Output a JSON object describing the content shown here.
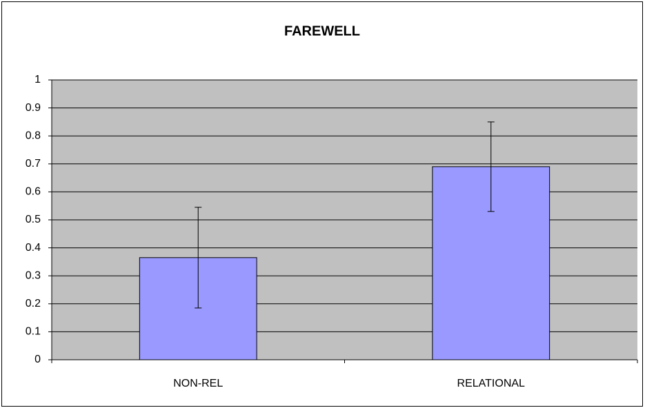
{
  "chart_data": {
    "type": "bar",
    "title": "FAREWELL",
    "categories": [
      "NON-REL",
      "RELATIONAL"
    ],
    "values": [
      0.365,
      0.69
    ],
    "errors": [
      0.18,
      0.16
    ],
    "color": "#9999ff",
    "plot_background": "#c0c0c0",
    "ylim": [
      0,
      1
    ],
    "yticks": [
      0,
      0.1,
      0.2,
      0.3,
      0.4,
      0.5,
      0.6,
      0.7,
      0.8,
      0.9,
      1
    ],
    "grid": true
  }
}
